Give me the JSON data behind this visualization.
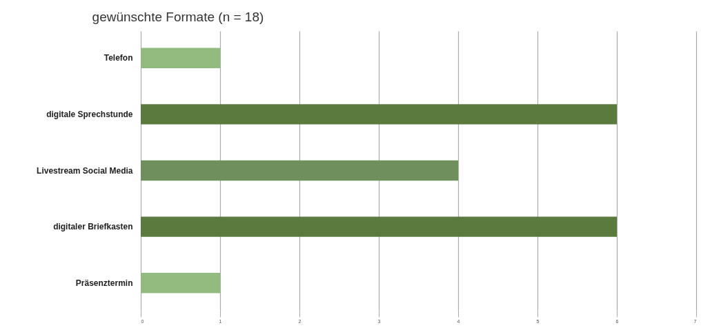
{
  "chart_data": {
    "type": "bar",
    "orientation": "horizontal",
    "title": "gewünschte Formate (n = 18)",
    "categories": [
      "Telefon",
      "digitale Sprechstunde",
      "Livestream Social Media",
      "digitaler Briefkasten",
      "Präsenztermin"
    ],
    "values": [
      1,
      6,
      4,
      6,
      1
    ],
    "colors": [
      "#93bb7f",
      "#5b7b3e",
      "#6f8f5c",
      "#5b7b3e",
      "#93bb7f"
    ],
    "xlim": [
      0,
      7
    ],
    "xticks": [
      0,
      1,
      2,
      3,
      4,
      5,
      6,
      7
    ],
    "grid": "x"
  }
}
